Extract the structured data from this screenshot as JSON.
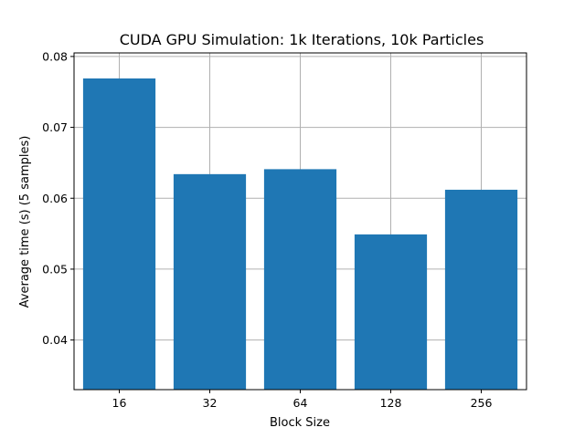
{
  "chart_data": {
    "type": "bar",
    "title": "CUDA GPU Simulation: 1k Iterations, 10k Particles",
    "xlabel": "Block Size",
    "ylabel": "Average time (s) (5 samples)",
    "categories": [
      "16",
      "32",
      "64",
      "128",
      "256"
    ],
    "values": [
      0.0769,
      0.0634,
      0.0641,
      0.0549,
      0.0612
    ],
    "ylim": [
      0.033,
      0.0805
    ],
    "yticks": [
      0.04,
      0.05,
      0.06,
      0.07,
      0.08
    ],
    "ytick_labels": [
      "0.04",
      "0.05",
      "0.06",
      "0.07",
      "0.08"
    ],
    "grid": true,
    "bar_color": "#1f77b4"
  }
}
